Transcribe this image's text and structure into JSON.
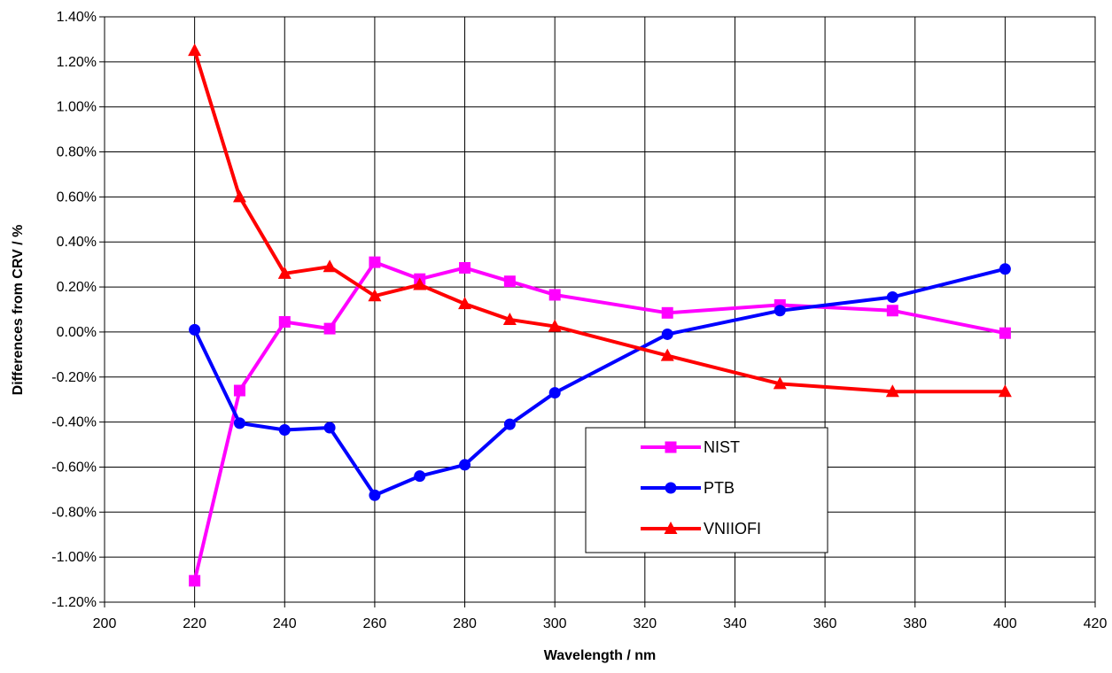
{
  "chart_data": {
    "type": "line",
    "title": "",
    "xlabel": "Wavelength / nm",
    "ylabel": "Differences from CRV  / %",
    "xlim": [
      200,
      420
    ],
    "ylim": [
      -1.2,
      1.4
    ],
    "x_ticks": [
      200,
      220,
      240,
      260,
      280,
      300,
      320,
      340,
      360,
      380,
      400,
      420
    ],
    "x_tick_labels": [
      "200",
      "220",
      "240",
      "260",
      "280",
      "300",
      "320",
      "340",
      "360",
      "380",
      "400",
      "420"
    ],
    "y_ticks": [
      1.4,
      1.2,
      1.0,
      0.8,
      0.6,
      0.4,
      0.2,
      0.0,
      -0.2,
      -0.4,
      -0.6,
      -0.8,
      -1.0,
      -1.2
    ],
    "y_tick_labels": [
      "1.40%",
      "1.20%",
      "1.00%",
      "0.80%",
      "0.60%",
      "0.40%",
      "0.20%",
      "0.00%",
      "-0.20%",
      "-0.40%",
      "-0.60%",
      "-0.80%",
      "-1.00%",
      "-1.20%"
    ],
    "grid": true,
    "legend_position": "lower-right",
    "x": [
      220,
      230,
      240,
      250,
      260,
      270,
      280,
      290,
      300,
      325,
      350,
      375,
      400
    ],
    "series": [
      {
        "name": "NIST",
        "color": "#ff00ff",
        "marker": "square",
        "values": [
          -1.105,
          -0.26,
          0.045,
          0.015,
          0.31,
          0.235,
          0.285,
          0.225,
          0.165,
          0.085,
          0.12,
          0.095,
          -0.005
        ]
      },
      {
        "name": "PTB",
        "color": "#0000ff",
        "marker": "circle",
        "values": [
          0.01,
          -0.405,
          -0.435,
          -0.425,
          -0.725,
          -0.64,
          -0.59,
          -0.41,
          -0.27,
          -0.01,
          0.095,
          0.155,
          0.28
        ]
      },
      {
        "name": "VNIIOFI",
        "color": "#ff0000",
        "marker": "triangle",
        "values": [
          1.25,
          0.6,
          0.26,
          0.29,
          0.16,
          0.21,
          0.125,
          0.055,
          0.025,
          -0.105,
          -0.23,
          -0.265,
          -0.265
        ]
      }
    ]
  }
}
